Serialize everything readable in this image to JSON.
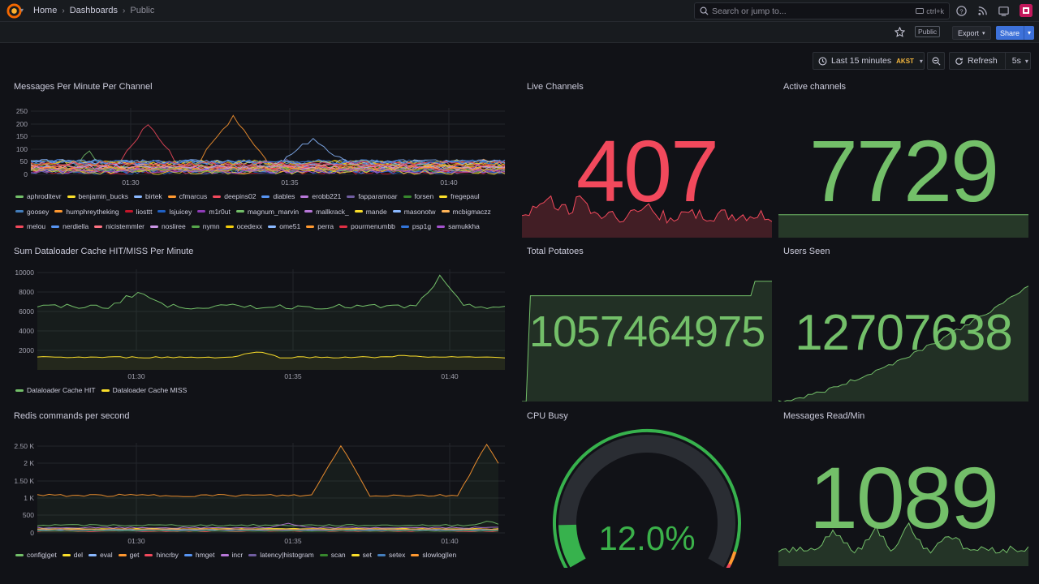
{
  "topbar": {
    "breadcrumbs": [
      "Home",
      "Dashboards",
      "Public"
    ],
    "search_placeholder": "Search or jump to...",
    "search_shortcut": "ctrl+k"
  },
  "toolbar": {
    "public_tag": "Public",
    "export_label": "Export",
    "share_label": "Share",
    "time_range": "Last 15 minutes",
    "timezone": "AKST",
    "refresh_label": "Refresh",
    "refresh_interval": "5s"
  },
  "icons": {
    "logo": "grafana-logo",
    "search": "search-icon",
    "help": "help-icon",
    "news": "rss-icon",
    "dock": "dock-icon",
    "star": "star-icon",
    "clock": "clock-icon",
    "zoom": "zoom-out-icon",
    "refresh": "refresh-icon"
  },
  "colors": {
    "bg": "#111217",
    "red": "#f2495c",
    "green": "#73bf69",
    "yellow": "#fade2a",
    "blue": "#3d71d9",
    "orange": "#ff9830"
  },
  "panels": {
    "messages": {
      "title": "Messages Per Minute Per Channel",
      "legend": [
        {
          "name": "aphroditevr",
          "color": "#73bf69"
        },
        {
          "name": "benjamin_bucks",
          "color": "#fade2a"
        },
        {
          "name": "birtek",
          "color": "#8ab8ff"
        },
        {
          "name": "cfmarcus",
          "color": "#ff9830"
        },
        {
          "name": "deepins02",
          "color": "#f2495c"
        },
        {
          "name": "diables",
          "color": "#5794f2"
        },
        {
          "name": "erobb221",
          "color": "#b877d9"
        },
        {
          "name": "fapparamoar",
          "color": "#705da0"
        },
        {
          "name": "forsen",
          "color": "#37872d"
        },
        {
          "name": "fregepaul",
          "color": "#fade2a"
        },
        {
          "name": "goosey",
          "color": "#447ebc"
        },
        {
          "name": "humphreytheking",
          "color": "#ff9830"
        },
        {
          "name": "liosttt",
          "color": "#c4162a"
        },
        {
          "name": "lsjuicey",
          "color": "#1f60c4"
        },
        {
          "name": "m1r0ut",
          "color": "#8f3bb8"
        },
        {
          "name": "magnum_marvin",
          "color": "#73bf69"
        },
        {
          "name": "mallkrack_",
          "color": "#b877d9"
        },
        {
          "name": "mande",
          "color": "#fade2a"
        },
        {
          "name": "masonotw",
          "color": "#8ab8ff"
        },
        {
          "name": "mcbigmaczz",
          "color": "#ffb357"
        },
        {
          "name": "melou",
          "color": "#f2495c"
        },
        {
          "name": "nerdiella",
          "color": "#5794f2"
        },
        {
          "name": "nicistemmler",
          "color": "#ff7383"
        },
        {
          "name": "nosliree",
          "color": "#ca95e5"
        },
        {
          "name": "nymn",
          "color": "#56a64b"
        },
        {
          "name": "ocedexx",
          "color": "#f2cc0c"
        },
        {
          "name": "ome51",
          "color": "#8ab8ff"
        },
        {
          "name": "perra",
          "color": "#ff9830"
        },
        {
          "name": "pourmenumbb",
          "color": "#e02f44"
        },
        {
          "name": "psp1g",
          "color": "#3274d9"
        },
        {
          "name": "samukkha",
          "color": "#a352cc"
        }
      ],
      "y_ticks": [
        "0",
        "50",
        "100",
        "150",
        "200",
        "250"
      ],
      "x_ticks": [
        "01:30",
        "01:35",
        "01:40"
      ]
    },
    "live_channels": {
      "title": "Live Channels",
      "value": "407"
    },
    "active_channels": {
      "title": "Active channels",
      "value": "7729"
    },
    "dataloader": {
      "title": "Sum Dataloader Cache HIT/MISS Per Minute",
      "y_ticks": [
        "2000",
        "4000",
        "6000",
        "8000",
        "10000"
      ],
      "x_ticks": [
        "01:30",
        "01:35",
        "01:40"
      ],
      "legend": [
        {
          "name": "Dataloader Cache HIT",
          "color": "#73bf69"
        },
        {
          "name": "Dataloader Cache MISS",
          "color": "#fade2a"
        }
      ]
    },
    "total_potatoes": {
      "title": "Total Potatoes",
      "value": "1057464975"
    },
    "users_seen": {
      "title": "Users Seen",
      "value": "12707638"
    },
    "redis": {
      "title": "Redis commands per second",
      "y_ticks": [
        "0",
        "500",
        "1 K",
        "1.50 K",
        "2 K",
        "2.50 K"
      ],
      "x_ticks": [
        "01:30",
        "01:35",
        "01:40"
      ],
      "legend": [
        {
          "name": "config|get",
          "color": "#73bf69"
        },
        {
          "name": "del",
          "color": "#fade2a"
        },
        {
          "name": "eval",
          "color": "#8ab8ff"
        },
        {
          "name": "get",
          "color": "#ff9830"
        },
        {
          "name": "hincrby",
          "color": "#f2495c"
        },
        {
          "name": "hmget",
          "color": "#5794f2"
        },
        {
          "name": "incr",
          "color": "#b877d9"
        },
        {
          "name": "latency|histogram",
          "color": "#705da0"
        },
        {
          "name": "scan",
          "color": "#37872d"
        },
        {
          "name": "set",
          "color": "#fade2a"
        },
        {
          "name": "setex",
          "color": "#447ebc"
        },
        {
          "name": "slowlog|len",
          "color": "#ff9830"
        }
      ]
    },
    "cpu_busy": {
      "title": "CPU Busy",
      "value": "12.0%",
      "fraction": 0.12
    },
    "messages_read": {
      "title": "Messages Read/Min",
      "value": "1089"
    }
  }
}
